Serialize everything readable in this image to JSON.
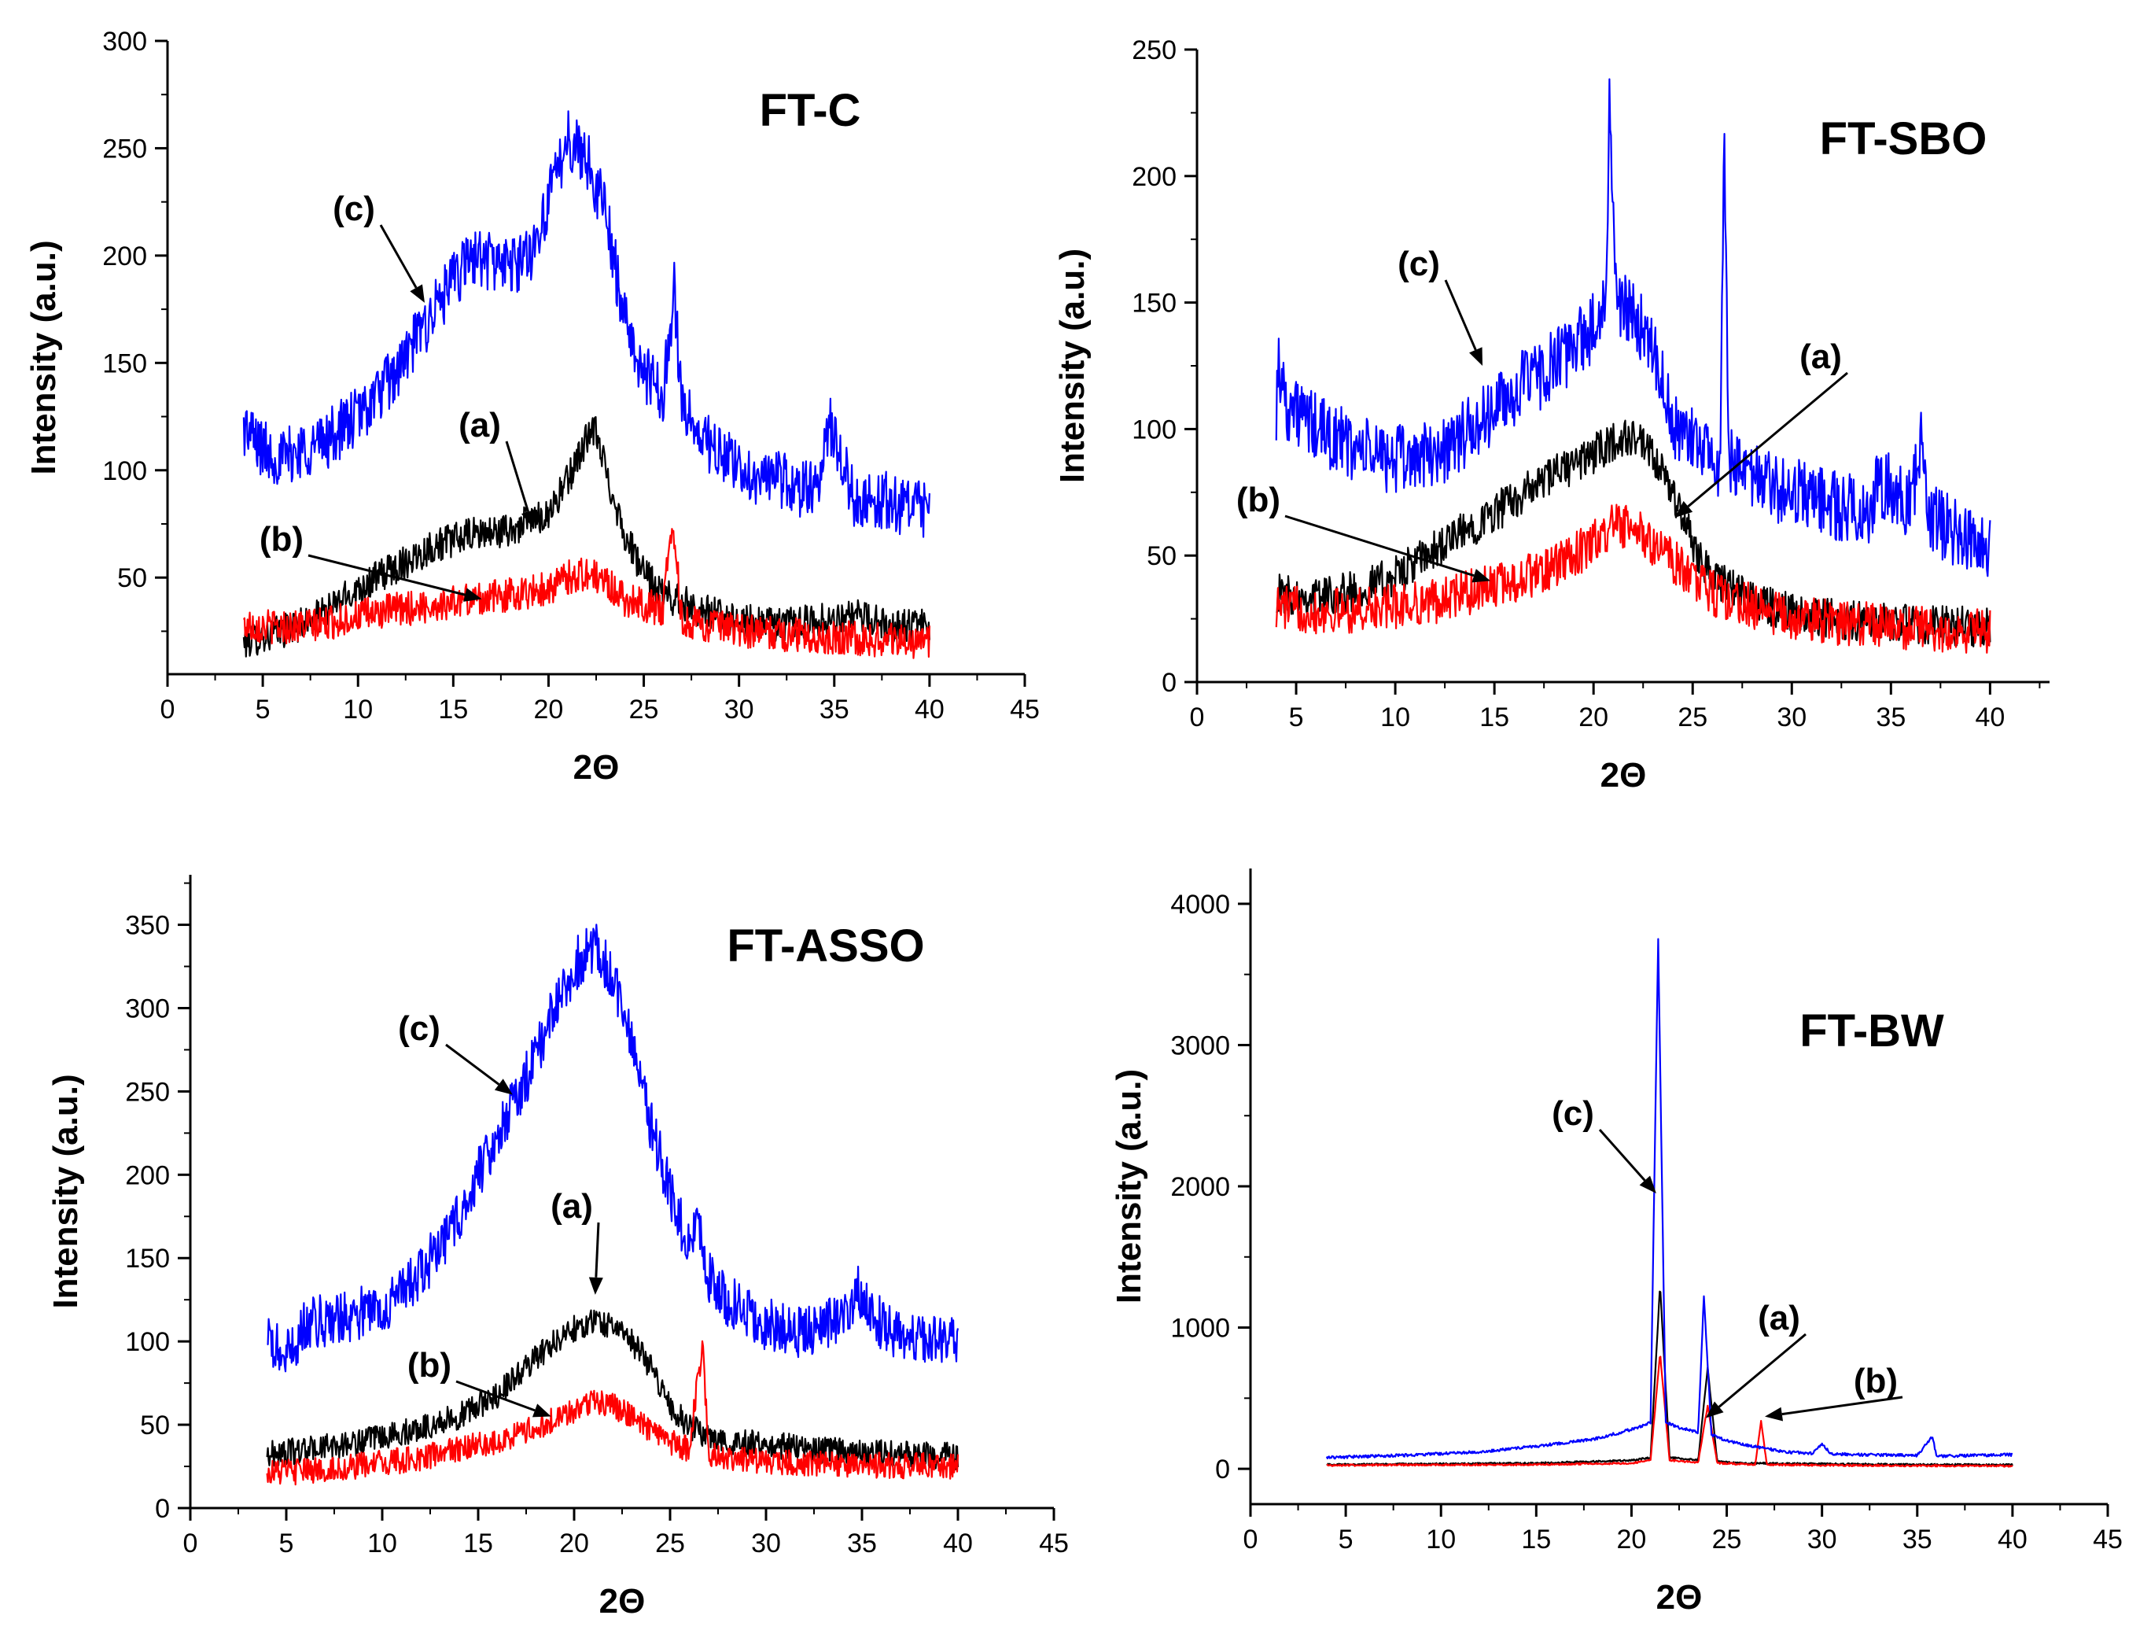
{
  "colors": {
    "a": "#000000",
    "b": "#ff0000",
    "c": "#0000ff"
  },
  "chart_data": [
    {
      "type": "line",
      "title": "FT-C",
      "xlabel": "2Θ",
      "ylabel": "Intensity (a.u.)",
      "xlim": [
        0,
        45
      ],
      "ylim": [
        5,
        300
      ],
      "xticks": [
        "0",
        "5",
        "10",
        "15",
        "20",
        "25",
        "30",
        "35",
        "40",
        "45"
      ],
      "yticks": [
        "50",
        "100",
        "150",
        "200",
        "250",
        "300"
      ],
      "series": [
        {
          "name": "(a)",
          "color_key": "a",
          "noise": 8,
          "x": [
            4,
            6,
            8,
            10,
            12,
            14,
            16,
            18,
            20,
            21,
            22,
            22.5,
            23,
            24,
            25,
            26,
            28,
            30,
            32,
            34,
            36,
            38,
            40
          ],
          "y": [
            20,
            25,
            32,
            45,
            55,
            65,
            70,
            72,
            80,
            95,
            115,
            118,
            100,
            70,
            52,
            42,
            35,
            30,
            28,
            30,
            32,
            28,
            27
          ]
        },
        {
          "name": "(b)",
          "color_key": "b",
          "noise": 8,
          "x": [
            4,
            6,
            8,
            10,
            12,
            14,
            16,
            18,
            20,
            21,
            22,
            23,
            24,
            26,
            26.5,
            27,
            30,
            35,
            40
          ],
          "y": [
            28,
            27,
            28,
            32,
            35,
            37,
            40,
            42,
            45,
            50,
            52,
            48,
            40,
            35,
            78,
            30,
            25,
            22,
            20
          ]
        },
        {
          "name": "(c)",
          "color_key": "c",
          "noise": 14,
          "x": [
            4,
            5,
            6,
            7,
            8,
            10,
            12,
            14,
            16,
            18,
            19,
            20,
            21,
            22,
            23,
            24,
            25,
            26,
            26.6,
            27,
            28,
            30,
            32,
            34,
            34.8,
            36,
            38,
            40
          ],
          "y": [
            120,
            110,
            105,
            110,
            112,
            125,
            145,
            175,
            200,
            195,
            200,
            225,
            255,
            245,
            220,
            170,
            145,
            135,
            185,
            130,
            115,
            100,
            95,
            90,
            120,
            88,
            85,
            80
          ]
        }
      ],
      "annotations": [
        {
          "label": "(c)",
          "points_to_x": 13.5,
          "points_to_y": 178
        },
        {
          "label": "(a)",
          "points_to_x": 19.2,
          "points_to_y": 73
        },
        {
          "label": "(b)",
          "points_to_x": 16.5,
          "points_to_y": 40
        }
      ]
    },
    {
      "type": "line",
      "title": "FT-SBO",
      "xlabel": "2Θ",
      "ylabel": "Intensity (a.u.)",
      "xlim": [
        0,
        43
      ],
      "ylim": [
        0,
        250
      ],
      "xticks": [
        "0",
        "5",
        "10",
        "15",
        "20",
        "25",
        "30",
        "35",
        "40"
      ],
      "yticks": [
        "0",
        "50",
        "100",
        "150",
        "200",
        "250"
      ],
      "series": [
        {
          "name": "(a)",
          "color_key": "a",
          "noise": 8,
          "x": [
            4,
            6,
            8,
            10,
            12,
            14,
            16,
            18,
            20,
            21,
            22,
            23,
            24,
            25,
            26,
            28,
            30,
            32,
            34,
            36,
            38,
            40
          ],
          "y": [
            35,
            34,
            36,
            42,
            52,
            62,
            72,
            82,
            90,
            95,
            97,
            88,
            75,
            55,
            42,
            32,
            28,
            25,
            24,
            23,
            22,
            22
          ]
        },
        {
          "name": "(b)",
          "color_key": "b",
          "noise": 9,
          "x": [
            4,
            6,
            8,
            10,
            12,
            14,
            16,
            18,
            20,
            21,
            22,
            23,
            24,
            26,
            28,
            30,
            35,
            40
          ],
          "y": [
            30,
            28,
            28,
            30,
            32,
            36,
            40,
            45,
            55,
            62,
            60,
            55,
            48,
            35,
            30,
            25,
            22,
            20
          ]
        },
        {
          "name": "(c)",
          "color_key": "c",
          "noise": 14,
          "x": [
            4,
            4.1,
            4.5,
            6,
            8,
            10,
            12,
            14,
            16,
            18,
            20,
            20.6,
            20.8,
            21.2,
            22,
            23,
            24,
            25,
            26,
            26.4,
            26.6,
            26.8,
            27,
            28,
            30,
            32,
            34,
            34.3,
            36,
            36.5,
            37,
            38,
            40
          ],
          "y": [
            108,
            128,
            110,
            100,
            92,
            88,
            90,
            100,
            115,
            125,
            140,
            150,
            225,
            150,
            145,
            135,
            100,
            95,
            90,
            85,
            220,
            90,
            85,
            80,
            75,
            70,
            68,
            80,
            70,
            95,
            65,
            60,
            55
          ]
        }
      ],
      "annotations": [
        {
          "label": "(c)",
          "points_to_x": 14.4,
          "points_to_y": 125
        },
        {
          "label": "(a)",
          "points_to_x": 24.1,
          "points_to_y": 65
        },
        {
          "label": "(b)",
          "points_to_x": 14.8,
          "points_to_y": 40
        }
      ]
    },
    {
      "type": "line",
      "title": "FT-ASSO",
      "xlabel": "2Θ",
      "ylabel": "Intensity (a.u.)",
      "xlim": [
        0,
        45
      ],
      "ylim": [
        0,
        380
      ],
      "xticks": [
        "0",
        "5",
        "10",
        "15",
        "20",
        "25",
        "30",
        "35",
        "40",
        "45"
      ],
      "yticks": [
        "0",
        "50",
        "100",
        "150",
        "200",
        "250",
        "300",
        "350"
      ],
      "series": [
        {
          "name": "(a)",
          "color_key": "a",
          "noise": 8,
          "x": [
            4,
            6,
            8,
            10,
            12,
            14,
            16,
            18,
            19,
            20,
            21,
            22,
            23,
            24,
            25,
            26,
            28,
            30,
            32,
            34,
            36,
            38,
            40
          ],
          "y": [
            32,
            35,
            38,
            42,
            48,
            55,
            68,
            90,
            100,
            108,
            112,
            110,
            100,
            85,
            62,
            48,
            40,
            38,
            36,
            34,
            33,
            32,
            31
          ]
        },
        {
          "name": "(b)",
          "color_key": "b",
          "noise": 8,
          "x": [
            4,
            6,
            8,
            10,
            12,
            14,
            16,
            18,
            20,
            21,
            22,
            23,
            24,
            26,
            26.7,
            27,
            28,
            30,
            35,
            40
          ],
          "y": [
            22,
            22,
            24,
            27,
            30,
            35,
            40,
            48,
            58,
            65,
            62,
            55,
            45,
            35,
            100,
            32,
            30,
            28,
            26,
            25
          ]
        },
        {
          "name": "(c)",
          "color_key": "c",
          "noise": 16,
          "x": [
            4,
            5,
            6,
            8,
            10,
            12,
            14,
            16,
            18,
            19,
            20,
            21,
            22,
            23,
            24,
            25,
            26,
            26.5,
            27,
            28,
            30,
            32,
            34,
            34.8,
            36,
            38,
            40
          ],
          "y": [
            100,
            90,
            110,
            115,
            120,
            140,
            175,
            225,
            270,
            300,
            325,
            338,
            320,
            280,
            230,
            190,
            155,
            170,
            140,
            125,
            110,
            105,
            115,
            130,
            110,
            100,
            98
          ]
        }
      ],
      "annotations": [
        {
          "label": "(c)",
          "points_to_x": 16.8,
          "points_to_y": 248
        },
        {
          "label": "(a)",
          "points_to_x": 21.1,
          "points_to_y": 128
        },
        {
          "label": "(b)",
          "points_to_x": 18.8,
          "points_to_y": 55
        }
      ]
    },
    {
      "type": "line",
      "title": "FT-BW",
      "xlabel": "2Θ",
      "ylabel": "Intensity (a.u.)",
      "xlim": [
        0,
        45
      ],
      "ylim": [
        -250,
        4250
      ],
      "xticks": [
        "0",
        "5",
        "10",
        "15",
        "20",
        "25",
        "30",
        "35",
        "40",
        "45"
      ],
      "yticks": [
        "0",
        "1000",
        "2000",
        "3000",
        "4000"
      ],
      "series": [
        {
          "name": "(a)",
          "color_key": "a",
          "noise": 6,
          "x": [
            4,
            10,
            15,
            20,
            21,
            21.5,
            22,
            23.5,
            24,
            24.5,
            26,
            30,
            35,
            40
          ],
          "y": [
            30,
            35,
            40,
            60,
            80,
            1300,
            80,
            60,
            720,
            50,
            40,
            35,
            30,
            28
          ]
        },
        {
          "name": "(b)",
          "color_key": "b",
          "noise": 6,
          "x": [
            4,
            10,
            15,
            20,
            21,
            21.5,
            22,
            23.5,
            24,
            24.5,
            26.5,
            26.8,
            27.1,
            30,
            35,
            40
          ],
          "y": [
            25,
            28,
            30,
            40,
            60,
            820,
            60,
            45,
            450,
            40,
            30,
            340,
            30,
            25,
            22,
            20
          ]
        },
        {
          "name": "(c)",
          "color_key": "c",
          "noise": 10,
          "x": [
            4,
            8,
            12,
            15,
            18,
            19.5,
            20.5,
            21,
            21.4,
            21.8,
            22.5,
            23.5,
            23.8,
            24.2,
            25,
            26,
            26.8,
            27.2,
            28,
            29.5,
            30,
            30.5,
            32,
            35,
            35.8,
            36,
            36.4,
            38,
            40
          ],
          "y": [
            80,
            95,
            120,
            160,
            210,
            260,
            300,
            330,
            3750,
            330,
            290,
            260,
            1230,
            240,
            200,
            170,
            150,
            140,
            120,
            110,
            175,
            105,
            100,
            95,
            230,
            95,
            90,
            95,
            100
          ]
        }
      ],
      "annotations": [
        {
          "label": "(c)",
          "points_to_x": 21.3,
          "points_to_y": 1950
        },
        {
          "label": "(a)",
          "points_to_x": 23.9,
          "points_to_y": 360
        },
        {
          "label": "(b)",
          "points_to_x": 27,
          "points_to_y": 370
        }
      ]
    }
  ]
}
